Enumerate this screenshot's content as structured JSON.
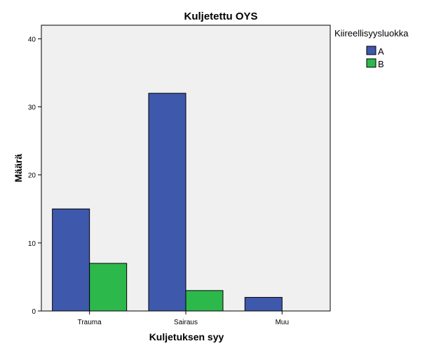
{
  "chart_data": {
    "type": "bar",
    "title": "Kuljetettu OYS",
    "xlabel": "Kuljetuksen syy",
    "ylabel": "Määrä",
    "categories": [
      "Trauma",
      "Sairaus",
      "Muu"
    ],
    "series": [
      {
        "name": "A",
        "values": [
          15,
          32,
          2
        ],
        "color": "#3e58ac"
      },
      {
        "name": "B",
        "values": [
          7,
          3,
          0
        ],
        "color": "#2db84c"
      }
    ],
    "ylim": [
      0,
      42
    ],
    "yticks": [
      0,
      10,
      20,
      30,
      40
    ],
    "legend_title": "Kiireellisyysluokka",
    "legend_position": "top-right-outside",
    "grid": false,
    "plot_background": "#f0f0f0"
  }
}
